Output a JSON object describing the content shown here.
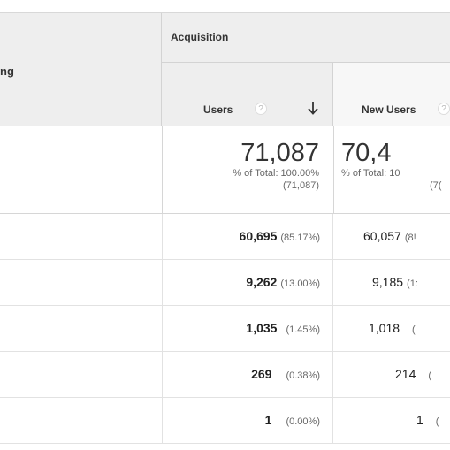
{
  "header": {
    "dimension_label": "ng",
    "group_label": "Acquisition",
    "help_glyph": "?",
    "columns": [
      {
        "label": "Users",
        "sorted": true,
        "sort_icon": "arrow-down-icon"
      },
      {
        "label": "New Users"
      }
    ]
  },
  "totals": {
    "users": {
      "value": "71,087",
      "pct_line": "% of Total: 100.00%",
      "abs_line": "(71,087)"
    },
    "new_users": {
      "value": "70,4",
      "pct_line": "% of Total: 10",
      "abs_line": "(7("
    }
  },
  "rows": [
    {
      "users": "60,695",
      "users_pct": "(85.17%)",
      "new_users": "60,057",
      "new_users_pct": "(8!"
    },
    {
      "users": "9,262",
      "users_pct": "(13.00%)",
      "new_users": "9,185",
      "new_users_pct": "(1:"
    },
    {
      "users": "1,035",
      "users_pct": "(1.45%)",
      "new_users": "1,018",
      "new_users_pct": "("
    },
    {
      "users": "269",
      "users_pct": "(0.38%)",
      "new_users": "214",
      "new_users_pct": "("
    },
    {
      "users": "1",
      "users_pct": "(0.00%)",
      "new_users": "1",
      "new_users_pct": "("
    }
  ],
  "colors": {
    "header_bg": "#eeeeee",
    "border": "#d6d6d6",
    "text": "#333333",
    "muted_text": "#666666"
  }
}
